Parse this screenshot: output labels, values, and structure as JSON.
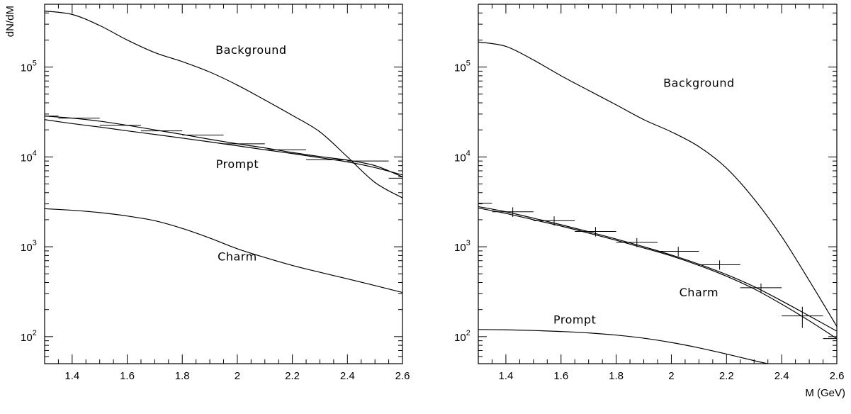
{
  "chart_data": [
    {
      "type": "line",
      "ylabel": "dN/dM",
      "xlabel": "",
      "xlim": [
        1.3,
        2.6
      ],
      "ylim": [
        50,
        500000
      ],
      "yscale": "log",
      "xticks": [
        1.4,
        1.6,
        1.8,
        2.0,
        2.2,
        2.4,
        2.6
      ],
      "xtick_labels": [
        "1.4",
        "1.6",
        "1.8",
        "2",
        "2.2",
        "2.4",
        "2.6"
      ],
      "yticks": [
        100,
        1000,
        10000,
        100000
      ],
      "ytick_labels": [
        {
          "base": "10",
          "exp": "2"
        },
        {
          "base": "10",
          "exp": "3"
        },
        {
          "base": "10",
          "exp": "4"
        },
        {
          "base": "10",
          "exp": "5"
        }
      ],
      "series": [
        {
          "x": [
            1.3,
            1.4,
            1.5,
            1.6,
            1.7,
            1.8,
            1.9,
            2.0,
            2.1,
            2.2,
            2.3,
            2.4,
            2.5,
            2.6
          ],
          "values": [
            420000,
            385000,
            290000,
            200000,
            145000,
            115000,
            88000,
            63000,
            43000,
            29000,
            19000,
            10000,
            5200,
            3500
          ]
        },
        {
          "x": [
            1.3,
            1.4,
            1.5,
            1.6,
            1.7,
            1.8,
            1.9,
            2.0,
            2.1,
            2.2,
            2.3,
            2.4,
            2.5,
            2.6
          ],
          "values": [
            26000,
            23500,
            21500,
            19500,
            17800,
            16200,
            14700,
            13300,
            12000,
            10900,
            9800,
            8800,
            7600,
            6300
          ]
        },
        {
          "x": [
            1.3,
            1.4,
            1.5,
            1.6,
            1.7,
            1.8,
            1.9,
            2.0,
            2.1,
            2.2,
            2.3,
            2.4,
            2.5,
            2.6
          ],
          "values": [
            28500,
            27000,
            25000,
            22500,
            20000,
            17800,
            15700,
            14000,
            12600,
            11200,
            10100,
            9200,
            8000,
            6000
          ]
        },
        {
          "x": [
            1.3,
            1.4,
            1.5,
            1.6,
            1.7,
            1.8,
            1.9,
            2.0,
            2.1,
            2.2,
            2.3,
            2.4,
            2.5,
            2.6
          ],
          "values": [
            2650,
            2550,
            2400,
            2200,
            1950,
            1600,
            1250,
            950,
            760,
            620,
            520,
            440,
            370,
            310
          ]
        }
      ],
      "points": [
        {
          "x": 1.325,
          "y": 28500,
          "xerr": 0.025
        },
        {
          "x": 1.425,
          "y": 27000,
          "xerr": 0.075
        },
        {
          "x": 1.575,
          "y": 22500,
          "xerr": 0.075
        },
        {
          "x": 1.725,
          "y": 19500,
          "xerr": 0.075
        },
        {
          "x": 1.875,
          "y": 17500,
          "xerr": 0.075
        },
        {
          "x": 2.025,
          "y": 14000,
          "xerr": 0.075
        },
        {
          "x": 2.175,
          "y": 12000,
          "xerr": 0.075
        },
        {
          "x": 2.325,
          "y": 9300,
          "xerr": 0.075
        },
        {
          "x": 2.475,
          "y": 9000,
          "xerr": 0.075
        },
        {
          "x": 2.575,
          "y": 5800,
          "xerr": 0.025
        }
      ],
      "annotations": [
        {
          "text": "Background",
          "x": 2.05,
          "y": 140000
        },
        {
          "text": "Prompt",
          "x": 2.0,
          "y": 7500
        },
        {
          "text": "Charm",
          "x": 2.0,
          "y": 700
        }
      ]
    },
    {
      "type": "line",
      "ylabel": "",
      "xlabel": "M (GeV)",
      "xlim": [
        1.3,
        2.6
      ],
      "ylim": [
        50,
        500000
      ],
      "yscale": "log",
      "xticks": [
        1.4,
        1.6,
        1.8,
        2.0,
        2.2,
        2.4,
        2.6
      ],
      "xtick_labels": [
        "1.4",
        "1.6",
        "1.8",
        "2",
        "2.2",
        "2.4",
        "2.6"
      ],
      "yticks": [
        100,
        1000,
        10000,
        100000
      ],
      "ytick_labels": [
        {
          "base": "10",
          "exp": "2"
        },
        {
          "base": "10",
          "exp": "3"
        },
        {
          "base": "10",
          "exp": "4"
        },
        {
          "base": "10",
          "exp": "5"
        }
      ],
      "series": [
        {
          "x": [
            1.3,
            1.4,
            1.5,
            1.6,
            1.7,
            1.8,
            1.9,
            2.0,
            2.1,
            2.2,
            2.3,
            2.4,
            2.5,
            2.6
          ],
          "values": [
            190000,
            170000,
            120000,
            80000,
            55000,
            38000,
            26000,
            19000,
            13000,
            7500,
            3400,
            1300,
            420,
            130
          ]
        },
        {
          "x": [
            1.3,
            1.4,
            1.5,
            1.6,
            1.7,
            1.8,
            1.9,
            2.0,
            2.1,
            2.2,
            2.3,
            2.4,
            2.5,
            2.6
          ],
          "values": [
            2700,
            2350,
            2000,
            1700,
            1420,
            1180,
            970,
            790,
            620,
            470,
            340,
            230,
            150,
            95
          ]
        },
        {
          "x": [
            1.3,
            1.4,
            1.5,
            1.6,
            1.7,
            1.8,
            1.9,
            2.0,
            2.1,
            2.2,
            2.3,
            2.4,
            2.5,
            2.6
          ],
          "values": [
            2800,
            2450,
            2080,
            1760,
            1470,
            1220,
            1000,
            810,
            640,
            490,
            360,
            250,
            170,
            115
          ]
        },
        {
          "x": [
            1.3,
            1.4,
            1.5,
            1.6,
            1.7,
            1.8,
            1.9,
            2.0,
            2.1,
            2.2,
            2.3,
            2.35
          ],
          "values": [
            120,
            119,
            117,
            114,
            110,
            104,
            96,
            86,
            75,
            64,
            54,
            50
          ]
        }
      ],
      "points": [
        {
          "x": 1.325,
          "y": 3050,
          "xerr": 0.025,
          "yerr": 0
        },
        {
          "x": 1.425,
          "y": 2450,
          "xerr": 0.075,
          "yerr": 300
        },
        {
          "x": 1.575,
          "y": 1950,
          "xerr": 0.075,
          "yerr": 230
        },
        {
          "x": 1.725,
          "y": 1480,
          "xerr": 0.075,
          "yerr": 180
        },
        {
          "x": 1.875,
          "y": 1120,
          "xerr": 0.075,
          "yerr": 130
        },
        {
          "x": 2.025,
          "y": 890,
          "xerr": 0.075,
          "yerr": 110
        },
        {
          "x": 2.175,
          "y": 630,
          "xerr": 0.075,
          "yerr": 75
        },
        {
          "x": 2.325,
          "y": 350,
          "xerr": 0.075,
          "yerr": 40
        },
        {
          "x": 2.475,
          "y": 170,
          "xerr": 0.075,
          "yerr": 45
        },
        {
          "x": 2.575,
          "y": 95,
          "xerr": 0.025,
          "yerr": 0
        }
      ],
      "annotations": [
        {
          "text": "Background",
          "x": 2.1,
          "y": 60000
        },
        {
          "text": "Charm",
          "x": 2.1,
          "y": 280
        },
        {
          "text": "Prompt",
          "x": 1.65,
          "y": 140
        }
      ]
    }
  ]
}
